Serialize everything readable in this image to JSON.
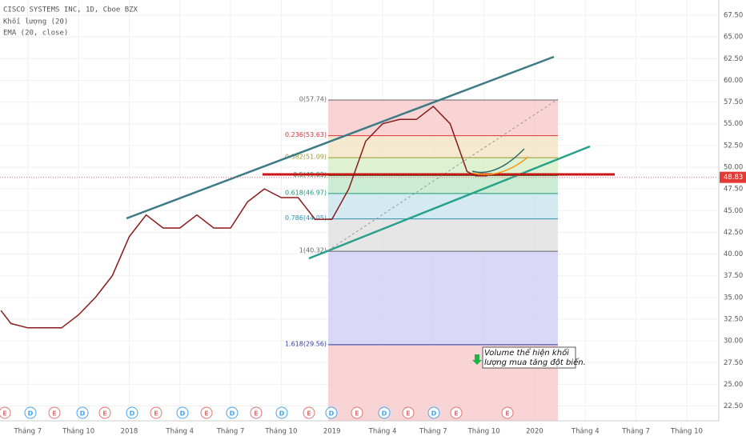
{
  "chart_data": {
    "type": "line",
    "title": "CISCO SYSTEMS INC, 1D, Cboe BZX",
    "subtitles": [
      "Khối lượng (20)",
      "EMA (20, close)"
    ],
    "x": [
      -1.6,
      -1,
      0,
      1,
      2,
      3,
      4,
      5,
      6,
      7,
      8,
      9,
      10,
      11,
      12,
      13,
      14,
      15,
      16,
      17,
      18,
      19,
      20,
      21,
      22,
      23,
      24,
      25,
      26,
      26.5,
      27.2
    ],
    "series": [
      {
        "name": "EMA (20, close)",
        "color": "#8b1a1a",
        "values": [
          33.5,
          32,
          31.5,
          31.5,
          31.5,
          33,
          35,
          37.5,
          42,
          44.5,
          43,
          43,
          44.5,
          43,
          43,
          46,
          47.5,
          46.5,
          46.5,
          44,
          44,
          47.5,
          53,
          55,
          55.5,
          55.5,
          57,
          55,
          49.5,
          49,
          49
        ]
      }
    ],
    "xlim": [
      -1.65,
      40.9
    ],
    "xticks": [
      {
        "value": 0,
        "label": "Tháng 7"
      },
      {
        "value": 3,
        "label": "Tháng 10"
      },
      {
        "value": 6,
        "label": "2018"
      },
      {
        "value": 9,
        "label": "Tháng 4"
      },
      {
        "value": 12,
        "label": "Tháng 7"
      },
      {
        "value": 15,
        "label": "Tháng 10"
      },
      {
        "value": 18,
        "label": "2019"
      },
      {
        "value": 21,
        "label": "Tháng 4"
      },
      {
        "value": 24,
        "label": "Tháng 7"
      },
      {
        "value": 27,
        "label": "Tháng 10"
      },
      {
        "value": 30,
        "label": "2020"
      },
      {
        "value": 33,
        "label": "Tháng 4"
      },
      {
        "value": 36,
        "label": "Tháng 7"
      },
      {
        "value": 39,
        "label": "Tháng 10"
      }
    ],
    "ylim": [
      20.8,
      69.25
    ],
    "yticks": [
      {
        "value": 22.5,
        "label": "22.50"
      },
      {
        "value": 25,
        "label": "25.00"
      },
      {
        "value": 27.5,
        "label": "27.50"
      },
      {
        "value": 30,
        "label": "30.00"
      },
      {
        "value": 32.5,
        "label": "32.50"
      },
      {
        "value": 35,
        "label": "35.00"
      },
      {
        "value": 37.5,
        "label": "37.50"
      },
      {
        "value": 40,
        "label": "40.00"
      },
      {
        "value": 42.5,
        "label": "42.50"
      },
      {
        "value": 45,
        "label": "45.00"
      },
      {
        "value": 47.5,
        "label": "47.50"
      },
      {
        "value": 50,
        "label": "50.00"
      },
      {
        "value": 52.5,
        "label": "52.50"
      },
      {
        "value": 55,
        "label": "55.00"
      },
      {
        "value": 57.5,
        "label": "57.50"
      },
      {
        "value": 60,
        "label": "60.00"
      },
      {
        "value": 62.5,
        "label": "62.50"
      },
      {
        "value": 65,
        "label": "65.00"
      },
      {
        "value": 67.5,
        "label": "67.50"
      }
    ],
    "grid": true,
    "current_price": {
      "value": 48.83,
      "label": "48.83"
    },
    "fib_levels": [
      {
        "value": 57.74,
        "label": "0(57.74)"
      },
      {
        "value": 53.63,
        "label": "0.236(53.63)"
      },
      {
        "value": 51.09,
        "label": "0.382(51.09)"
      },
      {
        "value": 49.03,
        "label": "0.5(49.03)"
      },
      {
        "value": 46.97,
        "label": "0.618(46.97)"
      },
      {
        "value": 44.05,
        "label": "0.786(44.05)"
      },
      {
        "value": 40.32,
        "label": "1(40.32)"
      },
      {
        "value": 29.56,
        "label": "1.618(29.56)"
      }
    ],
    "events": [
      "E",
      "D",
      "E",
      "D",
      "E",
      "D",
      "E",
      "D",
      "E",
      "D",
      "E",
      "D",
      "E",
      "D",
      "E",
      "D",
      "E",
      "D",
      "E",
      "E"
    ],
    "annotation": [
      "Volume thể hiện khối",
      "lượng mua tăng đột biến."
    ]
  }
}
